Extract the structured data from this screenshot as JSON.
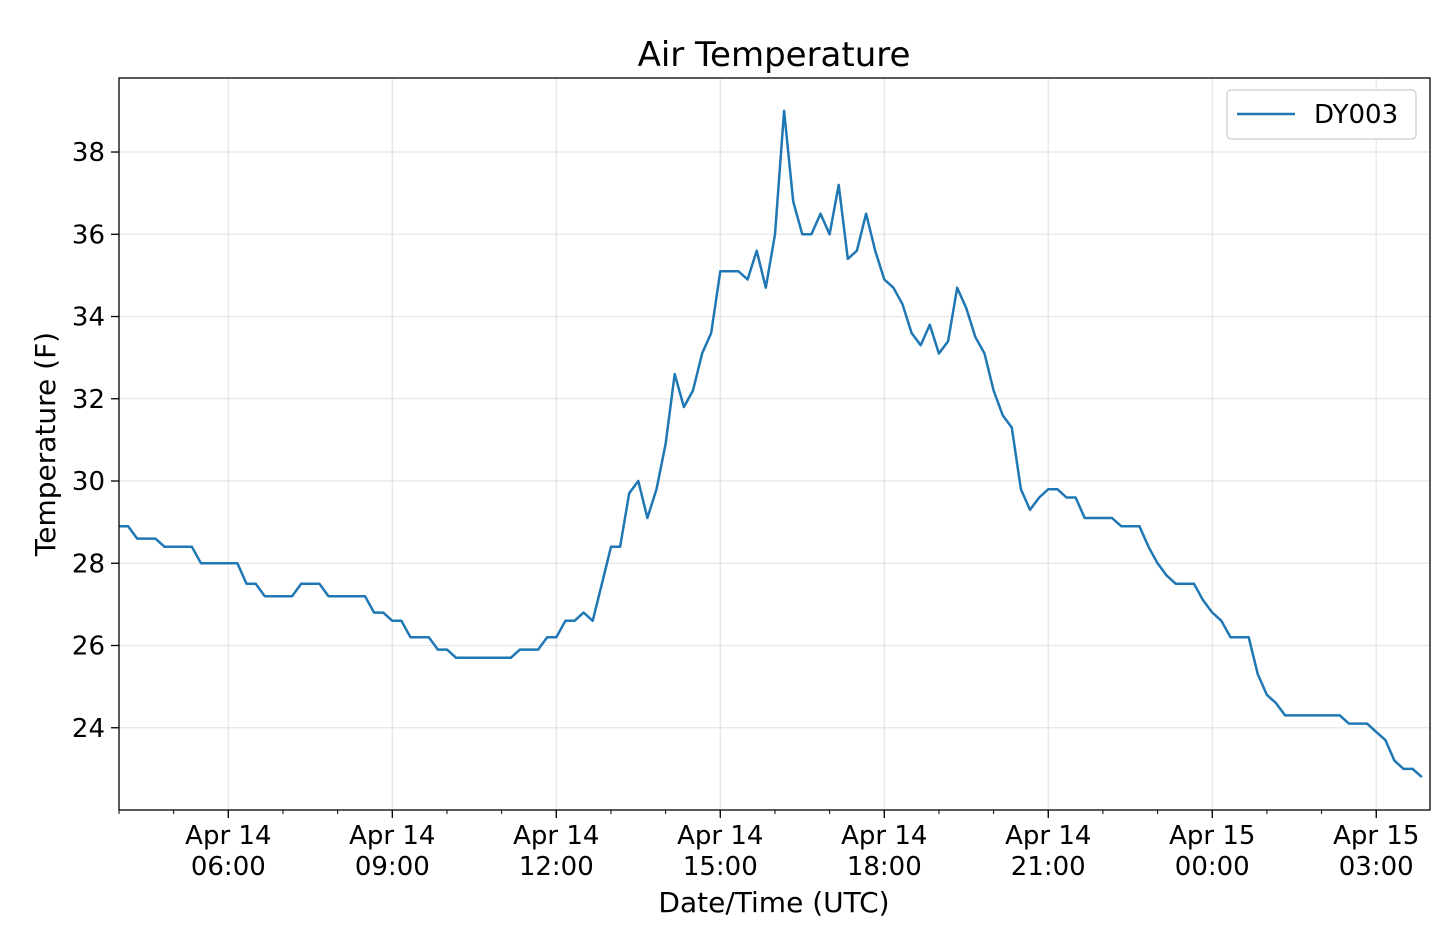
{
  "chart_data": {
    "type": "line",
    "title": "Air Temperature",
    "xlabel": "Date/Time (UTC)",
    "ylabel": "Temperature (F)",
    "x_tick_labels": [
      [
        "Apr 14",
        "06:00"
      ],
      [
        "Apr 14",
        "09:00"
      ],
      [
        "Apr 14",
        "12:00"
      ],
      [
        "Apr 14",
        "15:00"
      ],
      [
        "Apr 14",
        "18:00"
      ],
      [
        "Apr 14",
        "21:00"
      ],
      [
        "Apr 15",
        "00:00"
      ],
      [
        "Apr 15",
        "03:00"
      ]
    ],
    "x_tick_times": [
      "2019-04-14 06:00",
      "2019-04-14 09:00",
      "2019-04-14 12:00",
      "2019-04-14 15:00",
      "2019-04-14 18:00",
      "2019-04-14 21:00",
      "2019-04-15 00:00",
      "2019-04-15 03:00"
    ],
    "y_ticks": [
      24,
      26,
      28,
      30,
      32,
      34,
      36,
      38
    ],
    "xlim": [
      "2019-04-14 04:00",
      "2019-04-15 03:59"
    ],
    "ylim": [
      22.0,
      39.8
    ],
    "grid": true,
    "legend_position": "top-right",
    "series": [
      {
        "name": "DY003",
        "color": "#1f77b4",
        "x": [
          "2019-04-14 04:00",
          "2019-04-14 04:10",
          "2019-04-14 04:20",
          "2019-04-14 04:30",
          "2019-04-14 04:40",
          "2019-04-14 04:50",
          "2019-04-14 05:00",
          "2019-04-14 05:10",
          "2019-04-14 05:20",
          "2019-04-14 05:30",
          "2019-04-14 05:40",
          "2019-04-14 05:50",
          "2019-04-14 06:00",
          "2019-04-14 06:10",
          "2019-04-14 06:20",
          "2019-04-14 06:30",
          "2019-04-14 06:40",
          "2019-04-14 06:50",
          "2019-04-14 07:00",
          "2019-04-14 07:10",
          "2019-04-14 07:20",
          "2019-04-14 07:30",
          "2019-04-14 07:40",
          "2019-04-14 07:50",
          "2019-04-14 08:00",
          "2019-04-14 08:10",
          "2019-04-14 08:20",
          "2019-04-14 08:30",
          "2019-04-14 08:40",
          "2019-04-14 08:50",
          "2019-04-14 09:00",
          "2019-04-14 09:10",
          "2019-04-14 09:20",
          "2019-04-14 09:30",
          "2019-04-14 09:40",
          "2019-04-14 09:50",
          "2019-04-14 10:00",
          "2019-04-14 10:10",
          "2019-04-14 10:20",
          "2019-04-14 10:30",
          "2019-04-14 10:40",
          "2019-04-14 10:50",
          "2019-04-14 11:00",
          "2019-04-14 11:10",
          "2019-04-14 11:20",
          "2019-04-14 11:30",
          "2019-04-14 11:40",
          "2019-04-14 11:50",
          "2019-04-14 12:00",
          "2019-04-14 12:10",
          "2019-04-14 12:20",
          "2019-04-14 12:30",
          "2019-04-14 12:40",
          "2019-04-14 12:50",
          "2019-04-14 13:00",
          "2019-04-14 13:10",
          "2019-04-14 13:20",
          "2019-04-14 13:30",
          "2019-04-14 13:40",
          "2019-04-14 13:50",
          "2019-04-14 14:00",
          "2019-04-14 14:10",
          "2019-04-14 14:20",
          "2019-04-14 14:30",
          "2019-04-14 14:40",
          "2019-04-14 14:50",
          "2019-04-14 15:00",
          "2019-04-14 15:10",
          "2019-04-14 15:20",
          "2019-04-14 15:30",
          "2019-04-14 15:40",
          "2019-04-14 15:50",
          "2019-04-14 16:00",
          "2019-04-14 16:10",
          "2019-04-14 16:20",
          "2019-04-14 16:30",
          "2019-04-14 16:40",
          "2019-04-14 16:50",
          "2019-04-14 17:00",
          "2019-04-14 17:10",
          "2019-04-14 17:20",
          "2019-04-14 17:30",
          "2019-04-14 17:40",
          "2019-04-14 17:50",
          "2019-04-14 18:00",
          "2019-04-14 18:10",
          "2019-04-14 18:20",
          "2019-04-14 18:30",
          "2019-04-14 18:40",
          "2019-04-14 18:50",
          "2019-04-14 19:00",
          "2019-04-14 19:10",
          "2019-04-14 19:20",
          "2019-04-14 19:30",
          "2019-04-14 19:40",
          "2019-04-14 19:50",
          "2019-04-14 20:00",
          "2019-04-14 20:10",
          "2019-04-14 20:20",
          "2019-04-14 20:30",
          "2019-04-14 20:40",
          "2019-04-14 20:50",
          "2019-04-14 21:00",
          "2019-04-14 21:10",
          "2019-04-14 21:20",
          "2019-04-14 21:30",
          "2019-04-14 21:40",
          "2019-04-14 21:50",
          "2019-04-14 22:00",
          "2019-04-14 22:10",
          "2019-04-14 22:20",
          "2019-04-14 22:30",
          "2019-04-14 22:40",
          "2019-04-14 22:50",
          "2019-04-14 23:00",
          "2019-04-14 23:10",
          "2019-04-14 23:20",
          "2019-04-14 23:30",
          "2019-04-14 23:40",
          "2019-04-14 23:50",
          "2019-04-15 00:00",
          "2019-04-15 00:10",
          "2019-04-15 00:20",
          "2019-04-15 00:30",
          "2019-04-15 00:40",
          "2019-04-15 00:50",
          "2019-04-15 01:00",
          "2019-04-15 01:10",
          "2019-04-15 01:20",
          "2019-04-15 01:30",
          "2019-04-15 01:40",
          "2019-04-15 01:50",
          "2019-04-15 02:00",
          "2019-04-15 02:10",
          "2019-04-15 02:20",
          "2019-04-15 02:30",
          "2019-04-15 02:40",
          "2019-04-15 02:50",
          "2019-04-15 03:00",
          "2019-04-15 03:10",
          "2019-04-15 03:20",
          "2019-04-15 03:30",
          "2019-04-15 03:40",
          "2019-04-15 03:50"
        ],
        "y": [
          28.9,
          28.9,
          28.6,
          28.6,
          28.6,
          28.4,
          28.4,
          28.4,
          28.4,
          28.0,
          28.0,
          28.0,
          28.0,
          28.0,
          27.5,
          27.5,
          27.2,
          27.2,
          27.2,
          27.2,
          27.5,
          27.5,
          27.5,
          27.2,
          27.2,
          27.2,
          27.2,
          27.2,
          26.8,
          26.8,
          26.6,
          26.6,
          26.2,
          26.2,
          26.2,
          25.9,
          25.9,
          25.7,
          25.7,
          25.7,
          25.7,
          25.7,
          25.7,
          25.7,
          25.9,
          25.9,
          25.9,
          26.2,
          26.2,
          26.6,
          26.6,
          26.8,
          26.6,
          27.5,
          28.4,
          28.4,
          29.7,
          30.0,
          29.1,
          29.8,
          30.9,
          32.6,
          31.8,
          32.2,
          33.1,
          33.6,
          35.1,
          35.1,
          35.1,
          34.9,
          35.6,
          34.7,
          36.0,
          39.0,
          36.8,
          36.0,
          36.0,
          36.5,
          36.0,
          37.2,
          35.4,
          35.6,
          36.5,
          35.6,
          34.9,
          34.7,
          34.3,
          33.6,
          33.3,
          33.8,
          33.1,
          33.4,
          34.7,
          34.2,
          33.5,
          33.1,
          32.2,
          31.6,
          31.3,
          29.8,
          29.3,
          29.6,
          29.8,
          29.8,
          29.6,
          29.6,
          29.1,
          29.1,
          29.1,
          29.1,
          28.9,
          28.9,
          28.9,
          28.4,
          28.0,
          27.7,
          27.5,
          27.5,
          27.5,
          27.1,
          26.8,
          26.6,
          26.2,
          26.2,
          26.2,
          25.3,
          24.8,
          24.6,
          24.3,
          24.3,
          24.3,
          24.3,
          24.3,
          24.3,
          24.3,
          24.1,
          24.1,
          24.1,
          23.9,
          23.7,
          23.2,
          23.0,
          23.0,
          22.8
        ]
      }
    ]
  }
}
